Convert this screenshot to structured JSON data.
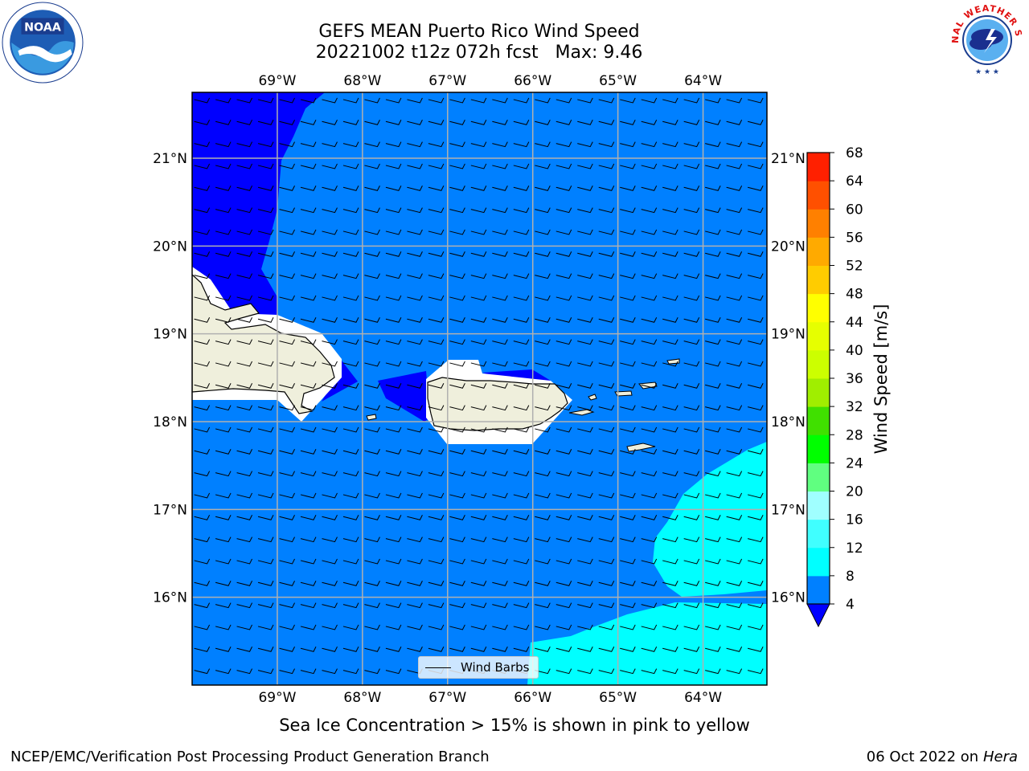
{
  "title": {
    "line1": "GEFS MEAN Puerto Rico Wind Speed",
    "line2": "20221002 t12z 072h fcst   Max: 9.46"
  },
  "logos": {
    "left": {
      "icon": "noaa-logo",
      "text": "NOAA"
    },
    "right": {
      "icon": "nws-logo",
      "text": "NATIONAL WEATHER SERVICE"
    }
  },
  "map": {
    "lon_range": [
      -70.0,
      -63.25
    ],
    "lat_range": [
      15.0,
      21.75
    ],
    "lon_ticks": [
      {
        "value": -69,
        "label": "69°W"
      },
      {
        "value": -68,
        "label": "68°W"
      },
      {
        "value": -67,
        "label": "67°W"
      },
      {
        "value": -66,
        "label": "66°W"
      },
      {
        "value": -65,
        "label": "65°W"
      },
      {
        "value": -64,
        "label": "64°W"
      }
    ],
    "lat_ticks": [
      {
        "value": 21,
        "label": "21°N"
      },
      {
        "value": 20,
        "label": "20°N"
      },
      {
        "value": 19,
        "label": "19°N"
      },
      {
        "value": 18,
        "label": "18°N"
      },
      {
        "value": 17,
        "label": "17°N"
      },
      {
        "value": 16,
        "label": "16°N"
      }
    ],
    "gridlines": true,
    "wind_barb_spacing_deg": 0.25,
    "fill_colors": {
      "lt4": "#0000ff",
      "4to8": "#0080ff",
      "8to12": "#00ffff",
      "land_mask": "#ffffff",
      "land": "#efefdc"
    }
  },
  "legend": {
    "label": "Wind Barbs",
    "placement": "lower-center"
  },
  "colorbar": {
    "title": "Wind Speed [m/s]",
    "levels": [
      4,
      8,
      12,
      16,
      20,
      24,
      28,
      32,
      36,
      40,
      44,
      48,
      52,
      56,
      60,
      64,
      68
    ],
    "colors": [
      "#0080ff",
      "#00ffff",
      "#40ffff",
      "#a0ffff",
      "#60ff80",
      "#00ff00",
      "#40e000",
      "#a0ee00",
      "#ccff00",
      "#e6ff00",
      "#ffff00",
      "#ffcc00",
      "#ffaa00",
      "#ff8000",
      "#ff5000",
      "#ff2000"
    ],
    "under_color": "#0000ff"
  },
  "captions": {
    "bottom": "Sea Ice Concentration > 15% is shown in pink to yellow",
    "footer_left": "NCEP/EMC/Verification Post Processing Product Generation Branch",
    "footer_date": "06 Oct 2022 on",
    "footer_host": "Hera"
  }
}
